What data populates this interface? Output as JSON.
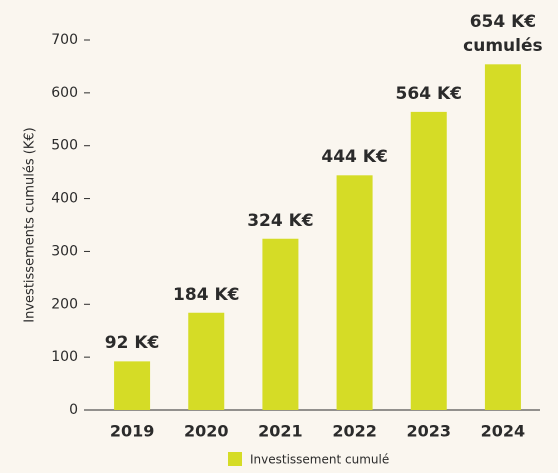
{
  "chart_data": {
    "type": "bar",
    "ylabel": "Investissements cumulés (K€)",
    "categories": [
      "2019",
      "2020",
      "2021",
      "2022",
      "2023",
      "2024"
    ],
    "series": [
      {
        "name": "Investissement cumulé",
        "color": "#d5dc26",
        "values": [
          92,
          184,
          324,
          444,
          564,
          654
        ],
        "value_labels": [
          "92 K€",
          "184 K€",
          "324 K€",
          "444 K€",
          "564 K€",
          "654 K€ cumulés"
        ]
      }
    ],
    "ylim": [
      0,
      700
    ],
    "yticks": [
      0,
      100,
      200,
      300,
      400,
      500,
      600,
      700
    ],
    "legend": "bottom"
  }
}
